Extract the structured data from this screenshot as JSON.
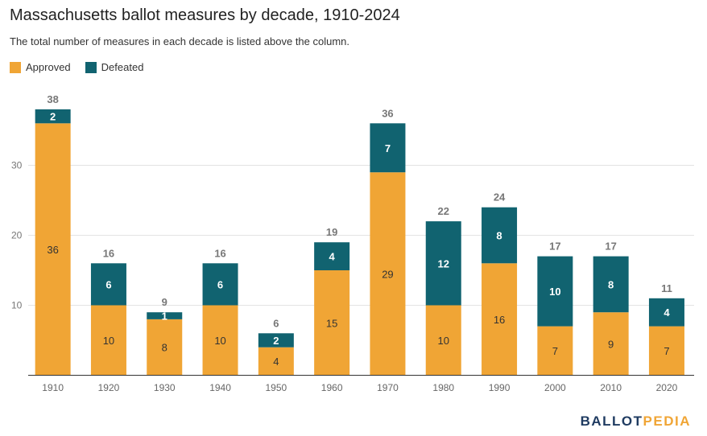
{
  "title": "Massachusetts ballot measures by decade, 1910-2024",
  "subtitle": "The total number of measures in each decade is listed above the column.",
  "legend": {
    "approved": "Approved",
    "defeated": "Defeated"
  },
  "brand": {
    "ballot": "BALLOT",
    "pedia": "PEDIA"
  },
  "colors": {
    "approved": "#f0a535",
    "defeated": "#116370",
    "brand_ballot": "#1f3b61",
    "brand_pedia": "#f0a535"
  },
  "chart_data": {
    "type": "bar",
    "stacked": true,
    "categories": [
      "1910",
      "1920",
      "1930",
      "1940",
      "1950",
      "1960",
      "1970",
      "1980",
      "1990",
      "2000",
      "2010",
      "2020"
    ],
    "series": [
      {
        "name": "Approved",
        "values": [
          36,
          10,
          8,
          10,
          4,
          15,
          29,
          10,
          16,
          7,
          9,
          7
        ]
      },
      {
        "name": "Defeated",
        "values": [
          2,
          6,
          1,
          6,
          2,
          4,
          7,
          12,
          8,
          10,
          8,
          4
        ]
      }
    ],
    "totals": [
      38,
      16,
      9,
      16,
      6,
      19,
      36,
      22,
      24,
      17,
      17,
      11
    ],
    "yticks": [
      10,
      20,
      30
    ],
    "ylim": [
      0,
      40
    ],
    "grid": true,
    "legend_position": "top-left"
  }
}
